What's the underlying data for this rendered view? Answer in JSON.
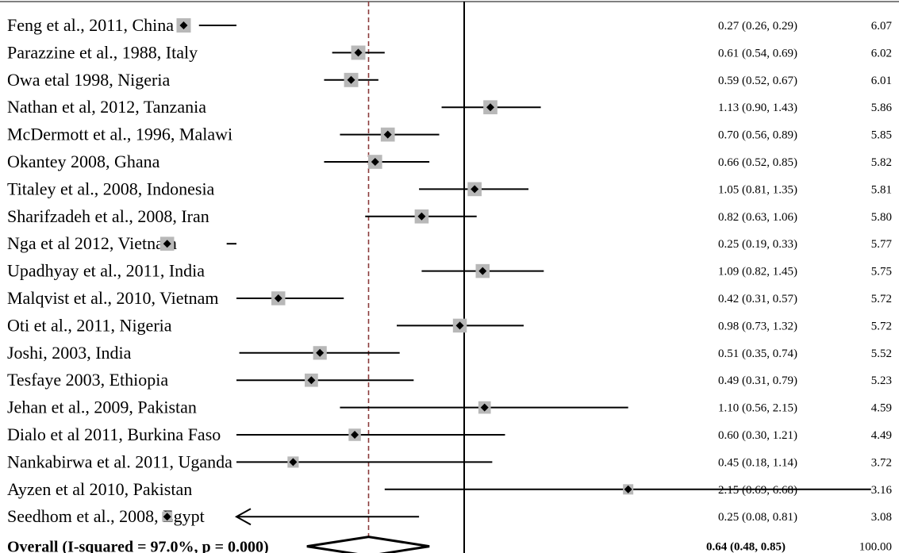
{
  "chart_data": {
    "type": "forest",
    "scale": "log",
    "null_value": 1.0,
    "pooled_line": 0.64,
    "studies": [
      {
        "label": "Feng et al., 2011, China",
        "es": 0.27,
        "lo": 0.26,
        "hi": 0.29,
        "ci_text": "0.27 (0.26, 0.29)",
        "weight": 6.07,
        "weight_text": "6.07"
      },
      {
        "label": "Parazzine et al., 1988, Italy",
        "es": 0.61,
        "lo": 0.54,
        "hi": 0.69,
        "ci_text": "0.61 (0.54, 0.69)",
        "weight": 6.02,
        "weight_text": "6.02"
      },
      {
        "label": "Owa etal 1998, Nigeria",
        "es": 0.59,
        "lo": 0.52,
        "hi": 0.67,
        "ci_text": "0.59 (0.52, 0.67)",
        "weight": 6.01,
        "weight_text": "6.01"
      },
      {
        "label": "Nathan et al, 2012, Tanzania",
        "es": 1.13,
        "lo": 0.9,
        "hi": 1.43,
        "ci_text": "1.13 (0.90, 1.43)",
        "weight": 5.86,
        "weight_text": "5.86"
      },
      {
        "label": "McDermott et al., 1996, Malawi",
        "es": 0.7,
        "lo": 0.56,
        "hi": 0.89,
        "ci_text": "0.70 (0.56, 0.89)",
        "weight": 5.85,
        "weight_text": "5.85"
      },
      {
        "label": "Okantey 2008, Ghana",
        "es": 0.66,
        "lo": 0.52,
        "hi": 0.85,
        "ci_text": "0.66 (0.52, 0.85)",
        "weight": 5.82,
        "weight_text": "5.82"
      },
      {
        "label": "Titaley et al., 2008, Indonesia",
        "es": 1.05,
        "lo": 0.81,
        "hi": 1.35,
        "ci_text": "1.05 (0.81, 1.35)",
        "weight": 5.81,
        "weight_text": "5.81"
      },
      {
        "label": "Sharifzadeh et al., 2008, Iran",
        "es": 0.82,
        "lo": 0.63,
        "hi": 1.06,
        "ci_text": "0.82 (0.63, 1.06)",
        "weight": 5.8,
        "weight_text": "5.80"
      },
      {
        "label": "Nga et al 2012, Vietnam",
        "es": 0.25,
        "lo": 0.19,
        "hi": 0.33,
        "ci_text": "0.25 (0.19, 0.33)",
        "weight": 5.77,
        "weight_text": "5.77"
      },
      {
        "label": "Upadhyay et al., 2011, India",
        "es": 1.09,
        "lo": 0.82,
        "hi": 1.45,
        "ci_text": "1.09 (0.82, 1.45)",
        "weight": 5.75,
        "weight_text": "5.75"
      },
      {
        "label": "Malqvist et al., 2010, Vietnam",
        "es": 0.42,
        "lo": 0.31,
        "hi": 0.57,
        "ci_text": "0.42 (0.31, 0.57)",
        "weight": 5.72,
        "weight_text": "5.72"
      },
      {
        "label": "Oti et al., 2011, Nigeria",
        "es": 0.98,
        "lo": 0.73,
        "hi": 1.32,
        "ci_text": "0.98 (0.73, 1.32)",
        "weight": 5.72,
        "weight_text": "5.72"
      },
      {
        "label": "Joshi, 2003, India",
        "es": 0.51,
        "lo": 0.35,
        "hi": 0.74,
        "ci_text": "0.51 (0.35, 0.74)",
        "weight": 5.52,
        "weight_text": "5.52"
      },
      {
        "label": "Tesfaye 2003, Ethiopia",
        "es": 0.49,
        "lo": 0.31,
        "hi": 0.79,
        "ci_text": "0.49 (0.31, 0.79)",
        "weight": 5.23,
        "weight_text": "5.23"
      },
      {
        "label": "Jehan et al., 2009, Pakistan",
        "es": 1.1,
        "lo": 0.56,
        "hi": 2.15,
        "ci_text": "1.10 (0.56, 2.15)",
        "weight": 4.59,
        "weight_text": "4.59"
      },
      {
        "label": "Dialo et al  2011, Burkina Faso",
        "es": 0.6,
        "lo": 0.3,
        "hi": 1.21,
        "ci_text": "0.60 (0.30, 1.21)",
        "weight": 4.49,
        "weight_text": "4.49"
      },
      {
        "label": "Nankabirwa et al. 2011, Uganda",
        "es": 0.45,
        "lo": 0.18,
        "hi": 1.14,
        "ci_text": "0.45 (0.18, 1.14)",
        "weight": 3.72,
        "weight_text": "3.72"
      },
      {
        "label": "Ayzen et al 2010, Pakistan",
        "es": 2.15,
        "lo": 0.69,
        "hi": 6.68,
        "ci_text": "2.15 (0.69, 6.68)",
        "weight": 3.16,
        "weight_text": "3.16"
      },
      {
        "label": "Seedhom et al., 2008, Egypt",
        "es": 0.25,
        "lo": 0.08,
        "hi": 0.81,
        "ci_text": "0.25 (0.08, 0.81)",
        "weight": 3.08,
        "weight_text": "3.08",
        "truncated_left": true
      }
    ],
    "overall": {
      "label": "Overall (I-squared = 97.0%, p = 0.000)",
      "es": 0.64,
      "lo": 0.48,
      "hi": 0.85,
      "ci_text": "0.64 (0.48, 0.85)",
      "weight_text": "100.00"
    },
    "colors": {
      "box": "#b8b8b8",
      "point": "#000000",
      "ci_line": "#000000",
      "null_line": "#000000",
      "pooled_line": "#8b3a3a",
      "axis": "#808080"
    }
  }
}
